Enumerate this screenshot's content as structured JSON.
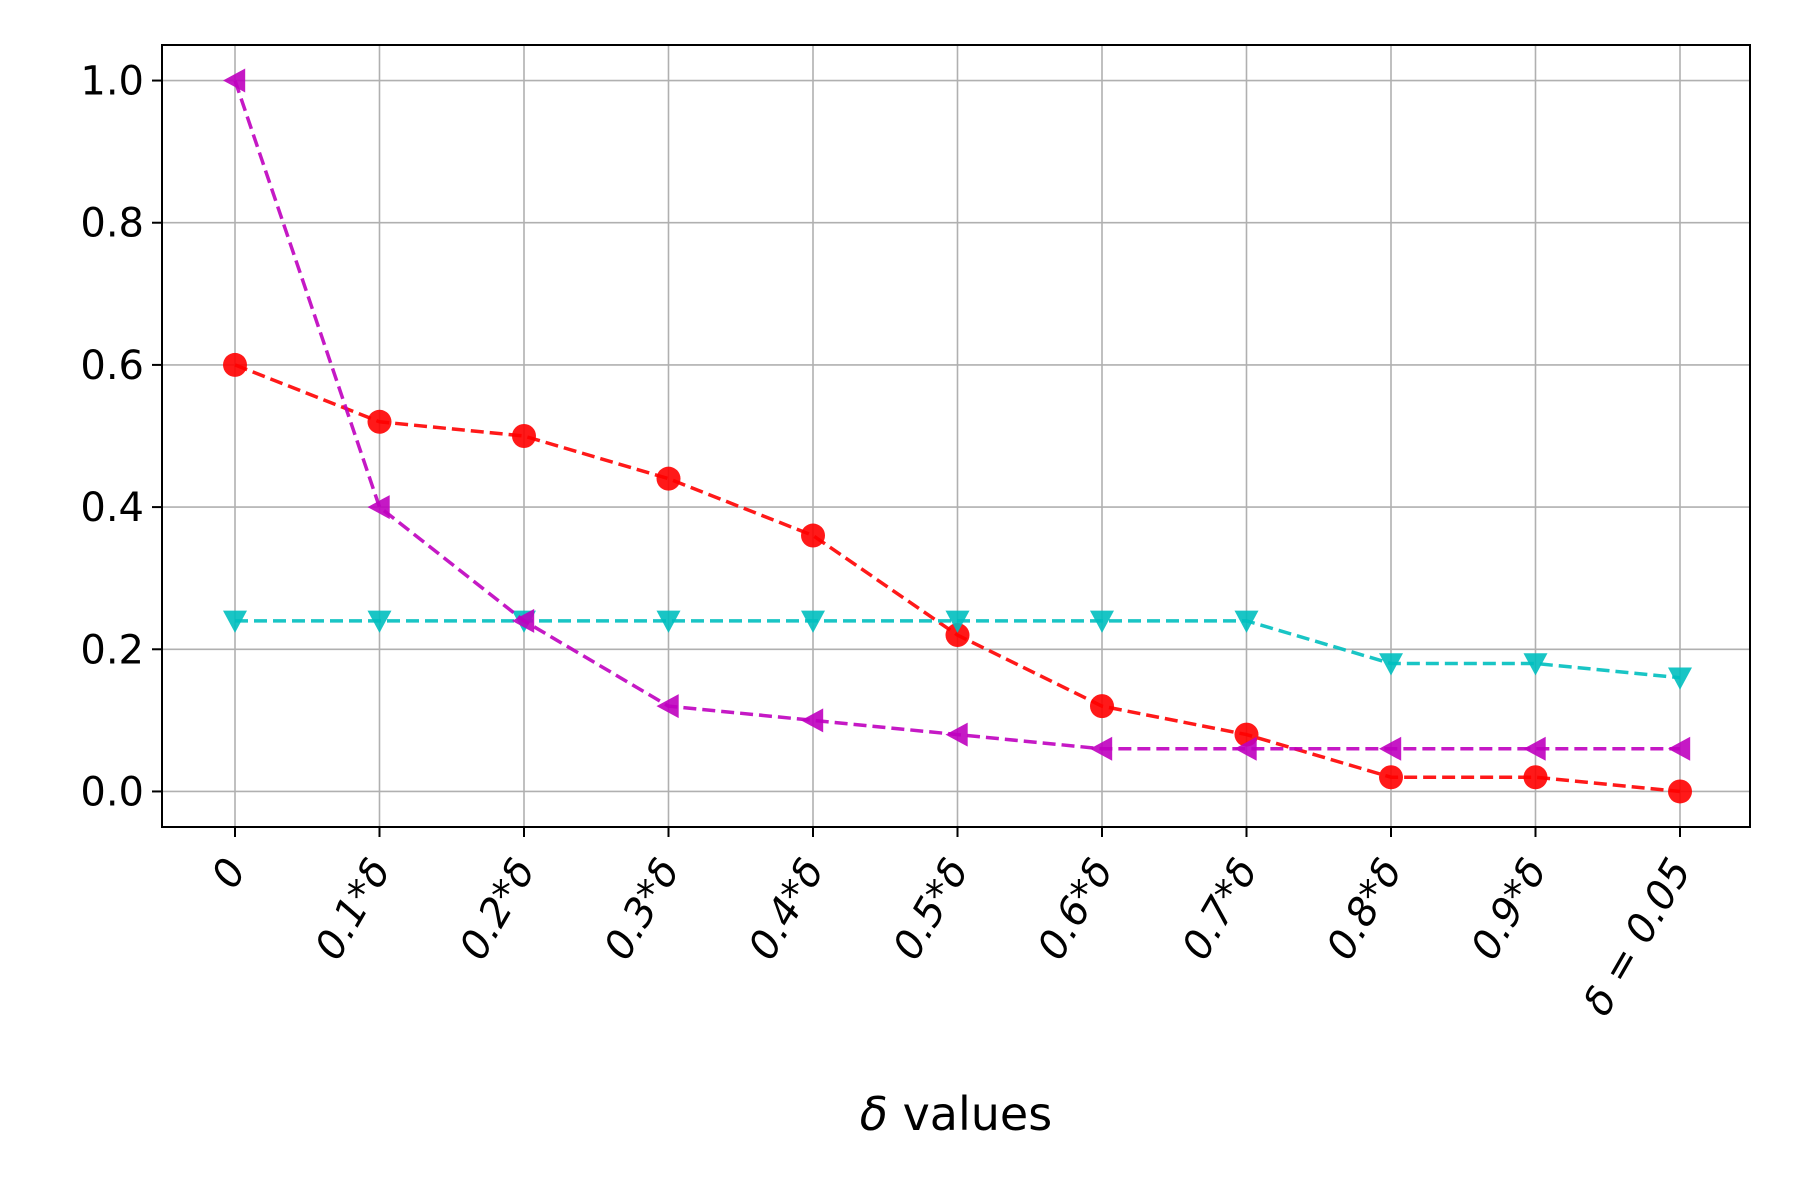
{
  "chart_data": {
    "type": "line",
    "title": "",
    "xlabel_symbol": "δ",
    "xlabel_text": " values",
    "ylabel": "",
    "categories": [
      "0",
      "0.1*δ",
      "0.2*δ",
      "0.3*δ",
      "0.4*δ",
      "0.5*δ",
      "0.6*δ",
      "0.7*δ",
      "0.8*δ",
      "0.9*δ",
      "δ = 0.05"
    ],
    "y_ticks": [
      "0.0",
      "0.2",
      "0.4",
      "0.6",
      "0.8",
      "1.0"
    ],
    "ylim": [
      -0.05,
      1.05
    ],
    "grid": true,
    "series": [
      {
        "color": "#ff0000",
        "marker": "circle",
        "linestyle": "dashed",
        "values": [
          0.6,
          0.52,
          0.5,
          0.44,
          0.36,
          0.22,
          0.12,
          0.08,
          0.02,
          0.02,
          0.0
        ]
      },
      {
        "color": "#00bfbf",
        "marker": "triangle-down",
        "linestyle": "dashed",
        "values": [
          0.24,
          0.24,
          0.24,
          0.24,
          0.24,
          0.24,
          0.24,
          0.24,
          0.18,
          0.18,
          0.16
        ]
      },
      {
        "color": "#bf00bf",
        "marker": "triangle-left",
        "linestyle": "dashed",
        "values": [
          1.0,
          0.4,
          0.24,
          0.12,
          0.1,
          0.08,
          0.06,
          0.06,
          0.06,
          0.06,
          0.06
        ]
      }
    ]
  }
}
